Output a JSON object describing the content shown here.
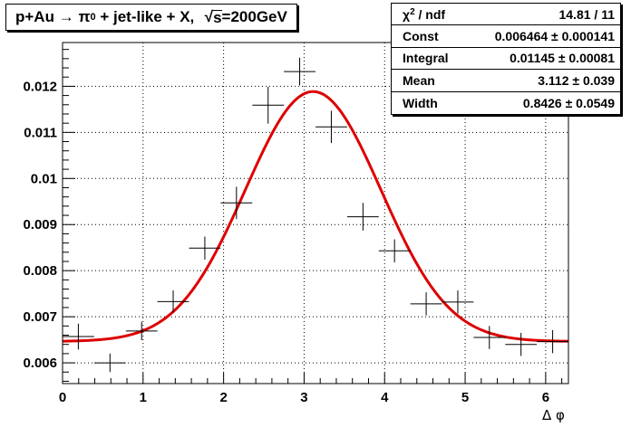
{
  "title": {
    "prefix": "p+Au",
    "arrow": "→",
    "particle": "π",
    "particle_superscript": "0",
    "middle": "+ jet-like + X,",
    "sqrt_symbol": "√",
    "sqrt_arg": "s",
    "energy": "=200GeV"
  },
  "stats": {
    "rows": [
      {
        "label": "χ",
        "label_sup": "2",
        "label_rest": " / ndf",
        "value": "14.81 / 11"
      },
      {
        "label": "Const",
        "label_sup": "",
        "label_rest": "",
        "value": "0.006464 ± 0.000141"
      },
      {
        "label": "Integral",
        "label_sup": "",
        "label_rest": "",
        "value": "0.01145 ± 0.00081"
      },
      {
        "label": "Mean",
        "label_sup": "",
        "label_rest": "",
        "value": "3.112 ± 0.039"
      },
      {
        "label": "Width",
        "label_sup": "",
        "label_rest": "",
        "value": "0.8426 ± 0.0549"
      }
    ]
  },
  "chart_data": {
    "type": "scatter",
    "title": "p+Au → π0 + jet-like + X, √s=200GeV",
    "xlabel": "Δ φ",
    "ylabel": "",
    "xlim": [
      0,
      6.283
    ],
    "ylim": [
      0.00555,
      0.01295
    ],
    "grid": true,
    "x_ticks": [
      0,
      1,
      2,
      3,
      4,
      5,
      6
    ],
    "x_tick_labels": [
      "0",
      "1",
      "2",
      "3",
      "4",
      "5",
      "6"
    ],
    "y_ticks": [
      0.006,
      0.007,
      0.008,
      0.009,
      0.01,
      0.011,
      0.012
    ],
    "y_tick_labels": [
      "0.006",
      "0.007",
      "0.008",
      "0.009",
      "0.01",
      "0.011",
      "0.012"
    ],
    "series": [
      {
        "points": [
          {
            "x": 0.196,
            "y": 0.00657,
            "xerr": 0.196,
            "yerr": 0.00028
          },
          {
            "x": 0.589,
            "y": 0.006,
            "xerr": 0.196,
            "yerr": 0.0002
          },
          {
            "x": 0.982,
            "y": 0.00669,
            "xerr": 0.196,
            "yerr": 0.0002
          },
          {
            "x": 1.374,
            "y": 0.00733,
            "xerr": 0.196,
            "yerr": 0.00024
          },
          {
            "x": 1.767,
            "y": 0.00849,
            "xerr": 0.196,
            "yerr": 0.00025
          },
          {
            "x": 2.16,
            "y": 0.00947,
            "xerr": 0.196,
            "yerr": 0.00035
          },
          {
            "x": 2.553,
            "y": 0.01159,
            "xerr": 0.196,
            "yerr": 0.0004
          },
          {
            "x": 2.945,
            "y": 0.01232,
            "xerr": 0.196,
            "yerr": 0.0003
          },
          {
            "x": 3.338,
            "y": 0.01112,
            "xerr": 0.196,
            "yerr": 0.00035
          },
          {
            "x": 3.731,
            "y": 0.00917,
            "xerr": 0.196,
            "yerr": 0.0003
          },
          {
            "x": 4.123,
            "y": 0.00843,
            "xerr": 0.196,
            "yerr": 0.00025
          },
          {
            "x": 4.516,
            "y": 0.00728,
            "xerr": 0.196,
            "yerr": 0.00025
          },
          {
            "x": 4.909,
            "y": 0.00732,
            "xerr": 0.196,
            "yerr": 0.00025
          },
          {
            "x": 5.301,
            "y": 0.00655,
            "xerr": 0.196,
            "yerr": 0.00025
          },
          {
            "x": 5.694,
            "y": 0.0064,
            "xerr": 0.196,
            "yerr": 0.00025
          },
          {
            "x": 6.087,
            "y": 0.00646,
            "xerr": 0.196,
            "yerr": 0.00025
          }
        ]
      }
    ],
    "fit": {
      "function": "gaussian_plus_constant",
      "const": 0.006464,
      "integral": 0.01145,
      "mean": 3.112,
      "width": 0.8426,
      "color": "#dd0000"
    },
    "marker_color": "#000000"
  }
}
